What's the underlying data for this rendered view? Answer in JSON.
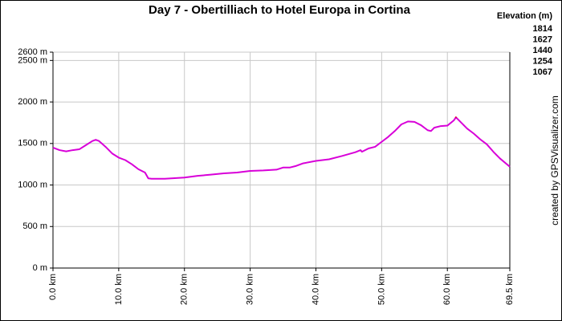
{
  "chart_data": {
    "type": "line",
    "title": "Day 7 - Obertilliach to  Hotel Europa in Cortina",
    "credit": "created by GPSVisualizer.com",
    "x": [
      0,
      1,
      2,
      3,
      4,
      5,
      6,
      6.5,
      7,
      8,
      9,
      10,
      11,
      12,
      13,
      14,
      14.5,
      15,
      17,
      19,
      20,
      22,
      24,
      26,
      28,
      30,
      32,
      34,
      35,
      36,
      37,
      38,
      40,
      42,
      44,
      46,
      46.8,
      47,
      48,
      49,
      50,
      51,
      52,
      53,
      54,
      55,
      56,
      57,
      57.5,
      58,
      59,
      60,
      61,
      61.3,
      62,
      63,
      64,
      65,
      66,
      67,
      68,
      69.5
    ],
    "values": [
      1450,
      1420,
      1405,
      1420,
      1430,
      1480,
      1530,
      1545,
      1530,
      1460,
      1380,
      1330,
      1300,
      1250,
      1190,
      1150,
      1080,
      1075,
      1075,
      1085,
      1090,
      1110,
      1125,
      1140,
      1150,
      1170,
      1175,
      1185,
      1210,
      1210,
      1230,
      1260,
      1290,
      1310,
      1350,
      1395,
      1420,
      1400,
      1440,
      1460,
      1520,
      1580,
      1650,
      1730,
      1765,
      1760,
      1720,
      1660,
      1650,
      1690,
      1710,
      1715,
      1780,
      1815,
      1760,
      1680,
      1620,
      1550,
      1490,
      1400,
      1320,
      1220
    ],
    "xlim": [
      0,
      69.5
    ],
    "xticks": [
      {
        "value": 0,
        "label": "0.0 km"
      },
      {
        "value": 10,
        "label": "10.0 km"
      },
      {
        "value": 20,
        "label": "20.0 km"
      },
      {
        "value": 30,
        "label": "30.0 km"
      },
      {
        "value": 40,
        "label": "40.0 km"
      },
      {
        "value": 50,
        "label": "50.0 km"
      },
      {
        "value": 60,
        "label": "60.0 km"
      },
      {
        "value": 69.5,
        "label": "69.5 km"
      }
    ],
    "ylim": [
      0,
      2600
    ],
    "yticks": [
      {
        "value": 0,
        "label": "0 m"
      },
      {
        "value": 500,
        "label": "500 m"
      },
      {
        "value": 1000,
        "label": "1000 m"
      },
      {
        "value": 1500,
        "label": "1500 m"
      },
      {
        "value": 2000,
        "label": "2000 m"
      },
      {
        "value": 2500,
        "label": "2500 m"
      },
      {
        "value": 2600,
        "label": "2600 m"
      }
    ],
    "grid": true,
    "color_scale": {
      "title": "Elevation (m)",
      "stops": [
        {
          "value": 1814,
          "color": "#d800d8"
        },
        {
          "value": 1627,
          "color": "#1c3ee0"
        },
        {
          "value": 1440,
          "color": "#10d070"
        },
        {
          "value": 1254,
          "color": "#b4d000"
        },
        {
          "value": 1067,
          "color": "#d80000"
        }
      ]
    }
  }
}
